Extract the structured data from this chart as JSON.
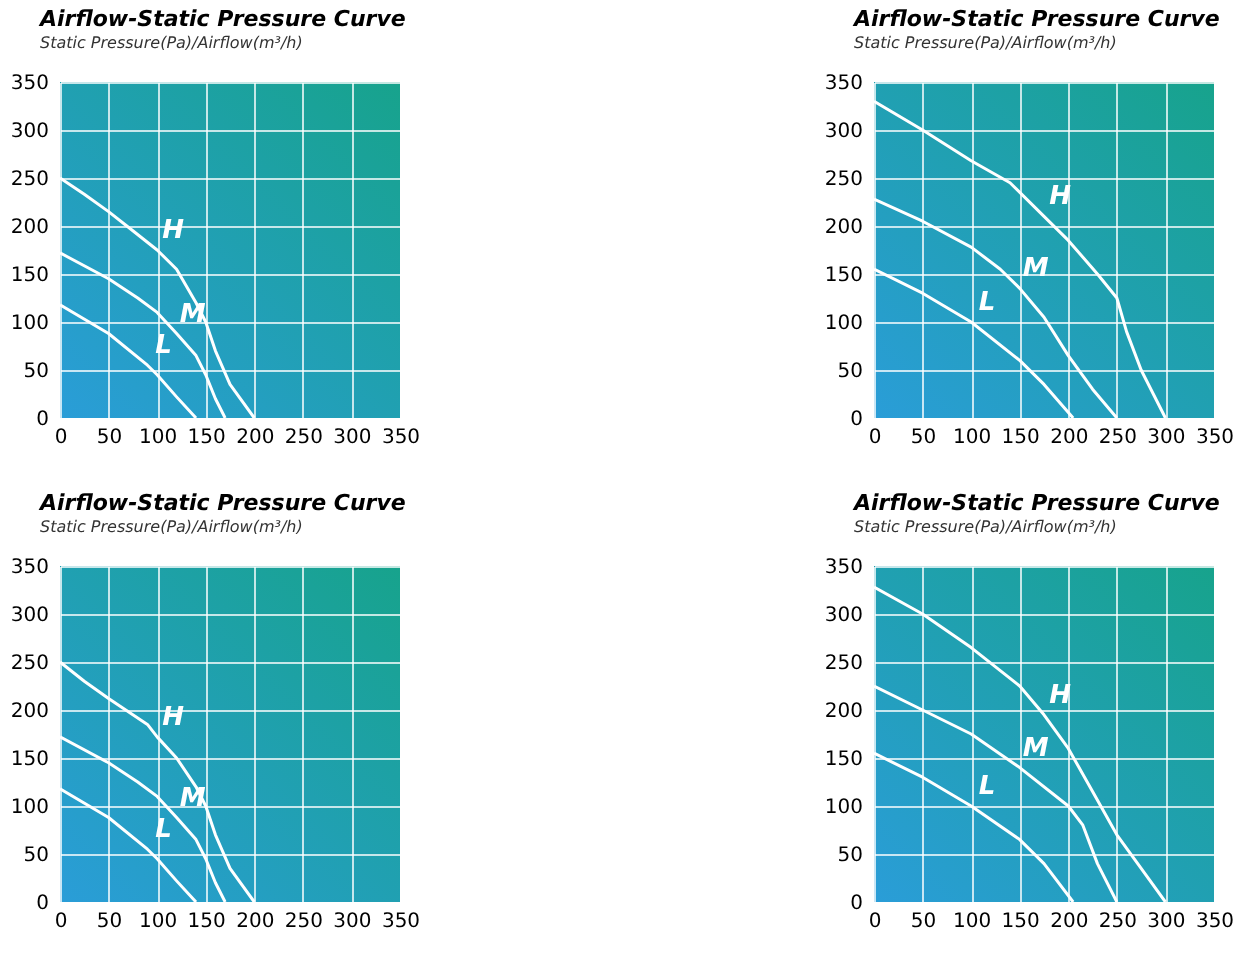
{
  "chart_data": [
    {
      "type": "line",
      "title": "Airflow-Static Pressure Curve",
      "subtitle": "Static Pressure(Pa)/Airflow(m³/h)",
      "xlim": [
        0,
        350
      ],
      "ylim": [
        0,
        350
      ],
      "xticks": [
        0,
        50,
        100,
        150,
        200,
        250,
        300,
        350
      ],
      "yticks": [
        0,
        50,
        100,
        150,
        200,
        250,
        300,
        350
      ],
      "grid": true,
      "series": [
        {
          "name": "H",
          "color": "#ffffff",
          "x": [
            0,
            25,
            50,
            75,
            100,
            120,
            140,
            150,
            160,
            175,
            200
          ],
          "values": [
            250,
            233,
            215,
            195,
            175,
            155,
            120,
            100,
            70,
            35,
            0
          ]
        },
        {
          "name": "M",
          "color": "#ffffff",
          "x": [
            0,
            50,
            80,
            100,
            120,
            140,
            150,
            160,
            170
          ],
          "values": [
            172,
            145,
            125,
            110,
            88,
            65,
            45,
            20,
            0
          ]
        },
        {
          "name": "L",
          "color": "#ffffff",
          "x": [
            0,
            50,
            90,
            100,
            120,
            140
          ],
          "values": [
            118,
            88,
            55,
            45,
            22,
            0
          ]
        }
      ]
    },
    {
      "type": "line",
      "title": "Airflow-Static Pressure Curve",
      "subtitle": "Static Pressure(Pa)/Airflow(m³/h)",
      "xlim": [
        0,
        350
      ],
      "ylim": [
        0,
        350
      ],
      "xticks": [
        0,
        50,
        100,
        150,
        200,
        250,
        300,
        350
      ],
      "yticks": [
        0,
        50,
        100,
        150,
        200,
        250,
        300,
        350
      ],
      "grid": true,
      "series": [
        {
          "name": "H",
          "color": "#ffffff",
          "x": [
            0,
            50,
            100,
            140,
            175,
            200,
            230,
            250,
            260,
            275,
            300
          ],
          "values": [
            330,
            300,
            268,
            245,
            210,
            185,
            150,
            125,
            90,
            50,
            0
          ]
        },
        {
          "name": "M",
          "color": "#ffffff",
          "x": [
            0,
            50,
            100,
            130,
            150,
            175,
            200,
            225,
            250
          ],
          "values": [
            228,
            205,
            178,
            155,
            135,
            105,
            65,
            30,
            0
          ]
        },
        {
          "name": "L",
          "color": "#ffffff",
          "x": [
            0,
            50,
            100,
            150,
            175,
            205
          ],
          "values": [
            155,
            130,
            100,
            60,
            35,
            0
          ]
        }
      ]
    },
    {
      "type": "line",
      "title": "Airflow-Static Pressure Curve",
      "subtitle": "Static Pressure(Pa)/Airflow(m³/h)",
      "xlim": [
        0,
        350
      ],
      "ylim": [
        0,
        350
      ],
      "xticks": [
        0,
        50,
        100,
        150,
        200,
        250,
        300,
        350
      ],
      "yticks": [
        0,
        50,
        100,
        150,
        200,
        250,
        300,
        350
      ],
      "grid": true,
      "series": [
        {
          "name": "H",
          "color": "#ffffff",
          "x": [
            0,
            25,
            50,
            75,
            90,
            100,
            120,
            140,
            150,
            160,
            175,
            200
          ],
          "values": [
            250,
            230,
            212,
            195,
            185,
            172,
            150,
            120,
            100,
            70,
            35,
            0
          ]
        },
        {
          "name": "M",
          "color": "#ffffff",
          "x": [
            0,
            50,
            80,
            100,
            120,
            140,
            150,
            160,
            170
          ],
          "values": [
            172,
            145,
            125,
            110,
            88,
            65,
            45,
            20,
            0
          ]
        },
        {
          "name": "L",
          "color": "#ffffff",
          "x": [
            0,
            50,
            90,
            100,
            120,
            140
          ],
          "values": [
            118,
            88,
            55,
            45,
            22,
            0
          ]
        }
      ]
    },
    {
      "type": "line",
      "title": "Airflow-Static Pressure Curve",
      "subtitle": "Static Pressure(Pa)/Airflow(m³/h)",
      "xlim": [
        0,
        350
      ],
      "ylim": [
        0,
        350
      ],
      "xticks": [
        0,
        50,
        100,
        150,
        200,
        250,
        300,
        350
      ],
      "yticks": [
        0,
        50,
        100,
        150,
        200,
        250,
        300,
        350
      ],
      "grid": true,
      "series": [
        {
          "name": "H",
          "color": "#ffffff",
          "x": [
            0,
            50,
            100,
            150,
            175,
            200,
            225,
            250,
            275,
            300
          ],
          "values": [
            328,
            300,
            265,
            225,
            195,
            160,
            115,
            70,
            35,
            0
          ]
        },
        {
          "name": "M",
          "color": "#ffffff",
          "x": [
            0,
            50,
            100,
            150,
            200,
            215,
            230,
            250
          ],
          "values": [
            225,
            200,
            175,
            140,
            100,
            80,
            40,
            0
          ]
        },
        {
          "name": "L",
          "color": "#ffffff",
          "x": [
            0,
            50,
            100,
            150,
            175,
            205
          ],
          "values": [
            155,
            130,
            100,
            65,
            40,
            0
          ]
        }
      ]
    }
  ]
}
